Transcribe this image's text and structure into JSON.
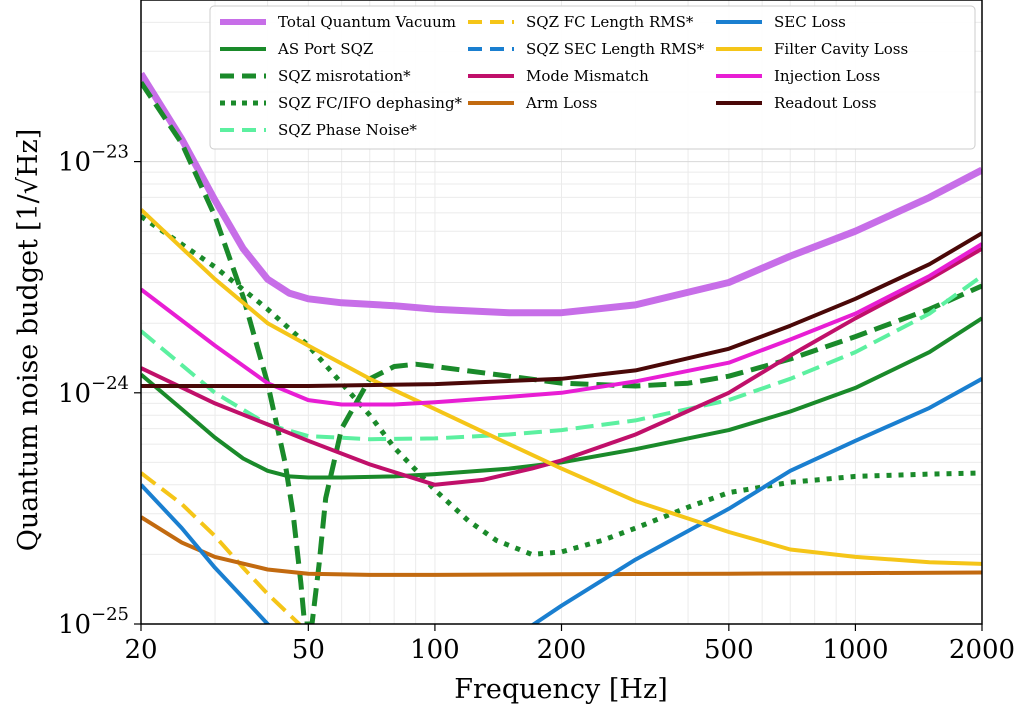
{
  "chart_data": {
    "type": "line",
    "xlabel": "Frequency [Hz]",
    "ylabel": "Quantum noise budget",
    "ylabel_unit": "[1/√Hz]",
    "xscale": "log",
    "yscale": "log",
    "xlim": [
      20,
      2000
    ],
    "ylim": [
      1e-25,
      5e-23
    ],
    "grid": true,
    "legend_position": "top",
    "xticks": [
      {
        "value": 20,
        "label": "20"
      },
      {
        "value": 50,
        "label": "50"
      },
      {
        "value": 100,
        "label": "100"
      },
      {
        "value": 200,
        "label": "200"
      },
      {
        "value": 500,
        "label": "500"
      },
      {
        "value": 1000,
        "label": "1000"
      },
      {
        "value": 2000,
        "label": "2000"
      }
    ],
    "yticks": [
      {
        "value": 1e-25,
        "base": "10",
        "exp": "−25"
      },
      {
        "value": 1e-24,
        "base": "10",
        "exp": "−24"
      },
      {
        "value": 1e-23,
        "base": "10",
        "exp": "−23"
      }
    ],
    "series": [
      {
        "name": "Total Quantum Vacuum",
        "color": "#c76ee8",
        "style": "solid",
        "width": 7,
        "points": [
          [
            20,
            2.4e-23
          ],
          [
            25,
            1.25e-23
          ],
          [
            30,
            6.8e-24
          ],
          [
            35,
            4.2e-24
          ],
          [
            40,
            3.1e-24
          ],
          [
            45,
            2.7e-24
          ],
          [
            50,
            2.55e-24
          ],
          [
            60,
            2.45e-24
          ],
          [
            80,
            2.38e-24
          ],
          [
            100,
            2.3e-24
          ],
          [
            150,
            2.22e-24
          ],
          [
            200,
            2.22e-24
          ],
          [
            300,
            2.4e-24
          ],
          [
            500,
            3e-24
          ],
          [
            700,
            3.9e-24
          ],
          [
            1000,
            5e-24
          ],
          [
            1500,
            7e-24
          ],
          [
            2000,
            9.2e-24
          ]
        ]
      },
      {
        "name": "AS Port SQZ",
        "color": "#1a8a2a",
        "style": "solid",
        "width": 4,
        "points": [
          [
            20,
            1.2e-24
          ],
          [
            25,
            8.5e-25
          ],
          [
            30,
            6.4e-25
          ],
          [
            35,
            5.2e-25
          ],
          [
            40,
            4.6e-25
          ],
          [
            45,
            4.35e-25
          ],
          [
            50,
            4.3e-25
          ],
          [
            60,
            4.3e-25
          ],
          [
            80,
            4.35e-25
          ],
          [
            100,
            4.45e-25
          ],
          [
            150,
            4.7e-25
          ],
          [
            200,
            5e-25
          ],
          [
            300,
            5.7e-25
          ],
          [
            500,
            6.9e-25
          ],
          [
            700,
            8.3e-25
          ],
          [
            1000,
            1.05e-24
          ],
          [
            1500,
            1.5e-24
          ],
          [
            2000,
            2.1e-24
          ]
        ]
      },
      {
        "name": "SQZ misrotation*",
        "color": "#1a8a2a",
        "style": "dashed",
        "width": 5,
        "points": [
          [
            20,
            2.2e-23
          ],
          [
            25,
            1.2e-23
          ],
          [
            30,
            5.8e-24
          ],
          [
            35,
            2.6e-24
          ],
          [
            40,
            1.1e-24
          ],
          [
            44,
            5e-25
          ],
          [
            46,
            3e-25
          ],
          [
            48,
            1.5e-25
          ],
          [
            49,
            1e-25
          ],
          [
            51,
            1e-25
          ],
          [
            53,
            1.8e-25
          ],
          [
            55,
            3.5e-25
          ],
          [
            60,
            7e-25
          ],
          [
            70,
            1.15e-24
          ],
          [
            80,
            1.3e-24
          ],
          [
            90,
            1.33e-24
          ],
          [
            100,
            1.3e-24
          ],
          [
            150,
            1.18e-24
          ],
          [
            200,
            1.1e-24
          ],
          [
            300,
            1.07e-24
          ],
          [
            400,
            1.1e-24
          ],
          [
            500,
            1.18e-24
          ],
          [
            700,
            1.4e-24
          ],
          [
            1000,
            1.75e-24
          ],
          [
            1500,
            2.3e-24
          ],
          [
            2000,
            2.9e-24
          ]
        ]
      },
      {
        "name": "SQZ FC/IFO dephasing*",
        "color": "#1a8a2a",
        "style": "dotted",
        "width": 5,
        "points": [
          [
            20,
            5.8e-24
          ],
          [
            30,
            3.5e-24
          ],
          [
            40,
            2.3e-24
          ],
          [
            50,
            1.6e-24
          ],
          [
            60,
            1.1e-24
          ],
          [
            70,
            8e-25
          ],
          [
            80,
            5.8e-25
          ],
          [
            100,
            3.8e-25
          ],
          [
            120,
            2.8e-25
          ],
          [
            140,
            2.3e-25
          ],
          [
            170,
            2e-25
          ],
          [
            200,
            2.05e-25
          ],
          [
            250,
            2.3e-25
          ],
          [
            300,
            2.6e-25
          ],
          [
            400,
            3.2e-25
          ],
          [
            500,
            3.7e-25
          ],
          [
            700,
            4.1e-25
          ],
          [
            1000,
            4.35e-25
          ],
          [
            1500,
            4.45e-25
          ],
          [
            2000,
            4.5e-25
          ]
        ]
      },
      {
        "name": "SQZ Phase Noise*",
        "color": "#5cf0a0",
        "style": "dashed",
        "width": 4,
        "points": [
          [
            20,
            1.85e-24
          ],
          [
            30,
            1e-24
          ],
          [
            40,
            7.3e-25
          ],
          [
            50,
            6.5e-25
          ],
          [
            70,
            6.3e-25
          ],
          [
            100,
            6.35e-25
          ],
          [
            150,
            6.6e-25
          ],
          [
            200,
            6.9e-25
          ],
          [
            300,
            7.6e-25
          ],
          [
            500,
            9.3e-25
          ],
          [
            700,
            1.15e-24
          ],
          [
            1000,
            1.5e-24
          ],
          [
            1500,
            2.2e-24
          ],
          [
            2000,
            3.2e-24
          ]
        ]
      },
      {
        "name": "SQZ FC Length RMS*",
        "color": "#f5c518",
        "style": "dashed",
        "width": 4,
        "points": [
          [
            20,
            4.5e-25
          ],
          [
            25,
            3.3e-25
          ],
          [
            30,
            2.4e-25
          ],
          [
            35,
            1.75e-25
          ],
          [
            40,
            1.35e-25
          ],
          [
            45,
            1.1e-25
          ],
          [
            49,
            9.5e-26
          ]
        ]
      },
      {
        "name": "SQZ SEC Length RMS*",
        "color": "#1a7fd0",
        "style": "dashed",
        "width": 4,
        "points": []
      },
      {
        "name": "Mode Mismatch",
        "color": "#c0106a",
        "style": "solid",
        "width": 4,
        "points": [
          [
            20,
            1.28e-24
          ],
          [
            30,
            9e-25
          ],
          [
            40,
            7.3e-25
          ],
          [
            50,
            6.2e-25
          ],
          [
            70,
            4.9e-25
          ],
          [
            100,
            4e-25
          ],
          [
            130,
            4.2e-25
          ],
          [
            170,
            4.7e-25
          ],
          [
            200,
            5.1e-25
          ],
          [
            300,
            6.6e-25
          ],
          [
            500,
            1e-24
          ],
          [
            700,
            1.45e-24
          ],
          [
            1000,
            2.1e-24
          ],
          [
            1500,
            3.1e-24
          ],
          [
            2000,
            4.2e-24
          ]
        ]
      },
      {
        "name": "Arm Loss",
        "color": "#c26a10",
        "style": "solid",
        "width": 4,
        "points": [
          [
            20,
            2.9e-25
          ],
          [
            25,
            2.25e-25
          ],
          [
            30,
            1.95e-25
          ],
          [
            40,
            1.72e-25
          ],
          [
            50,
            1.65e-25
          ],
          [
            70,
            1.63e-25
          ],
          [
            100,
            1.63e-25
          ],
          [
            200,
            1.64e-25
          ],
          [
            500,
            1.65e-25
          ],
          [
            1000,
            1.66e-25
          ],
          [
            2000,
            1.67e-25
          ]
        ]
      },
      {
        "name": "SEC Loss",
        "color": "#1a7fd0",
        "style": "solid",
        "width": 4,
        "points": [
          [
            20,
            4e-25
          ],
          [
            25,
            2.6e-25
          ],
          [
            30,
            1.75e-25
          ],
          [
            35,
            1.3e-25
          ],
          [
            40,
            1e-25
          ],
          [
            42,
            9.3e-26
          ]
        ]
      },
      {
        "name": "SEC Loss (high)",
        "color": "#1a7fd0",
        "style": "solid",
        "width": 4,
        "nolegend": true,
        "points": [
          [
            165,
            9.5e-26
          ],
          [
            200,
            1.2e-25
          ],
          [
            300,
            1.9e-25
          ],
          [
            500,
            3.15e-25
          ],
          [
            700,
            4.6e-25
          ],
          [
            1000,
            6.2e-25
          ],
          [
            1500,
            8.6e-25
          ],
          [
            2000,
            1.15e-24
          ]
        ]
      },
      {
        "name": "Filter Cavity Loss",
        "color": "#f5c518",
        "style": "solid",
        "width": 4,
        "points": [
          [
            20,
            6.2e-24
          ],
          [
            30,
            3.1e-24
          ],
          [
            40,
            2e-24
          ],
          [
            50,
            1.6e-24
          ],
          [
            70,
            1.15e-24
          ],
          [
            100,
            8.5e-25
          ],
          [
            150,
            6e-25
          ],
          [
            200,
            4.7e-25
          ],
          [
            300,
            3.4e-25
          ],
          [
            500,
            2.5e-25
          ],
          [
            700,
            2.1e-25
          ],
          [
            1000,
            1.95e-25
          ],
          [
            1500,
            1.85e-25
          ],
          [
            2000,
            1.82e-25
          ]
        ]
      },
      {
        "name": "Injection Loss",
        "color": "#e81ed4",
        "style": "solid",
        "width": 4,
        "points": [
          [
            20,
            2.8e-24
          ],
          [
            30,
            1.6e-24
          ],
          [
            40,
            1.1e-24
          ],
          [
            50,
            9.3e-25
          ],
          [
            60,
            8.9e-25
          ],
          [
            80,
            8.9e-25
          ],
          [
            100,
            9.1e-25
          ],
          [
            150,
            9.6e-25
          ],
          [
            200,
            1e-24
          ],
          [
            300,
            1.12e-24
          ],
          [
            500,
            1.35e-24
          ],
          [
            700,
            1.7e-24
          ],
          [
            1000,
            2.2e-24
          ],
          [
            1500,
            3.2e-24
          ],
          [
            2000,
            4.4e-24
          ]
        ]
      },
      {
        "name": "Readout Loss",
        "color": "#4a0808",
        "style": "solid",
        "width": 4,
        "points": [
          [
            20,
            1.07e-24
          ],
          [
            50,
            1.07e-24
          ],
          [
            100,
            1.09e-24
          ],
          [
            200,
            1.15e-24
          ],
          [
            300,
            1.25e-24
          ],
          [
            500,
            1.55e-24
          ],
          [
            700,
            1.95e-24
          ],
          [
            1000,
            2.55e-24
          ],
          [
            1500,
            3.6e-24
          ],
          [
            2000,
            4.9e-24
          ]
        ]
      }
    ]
  }
}
